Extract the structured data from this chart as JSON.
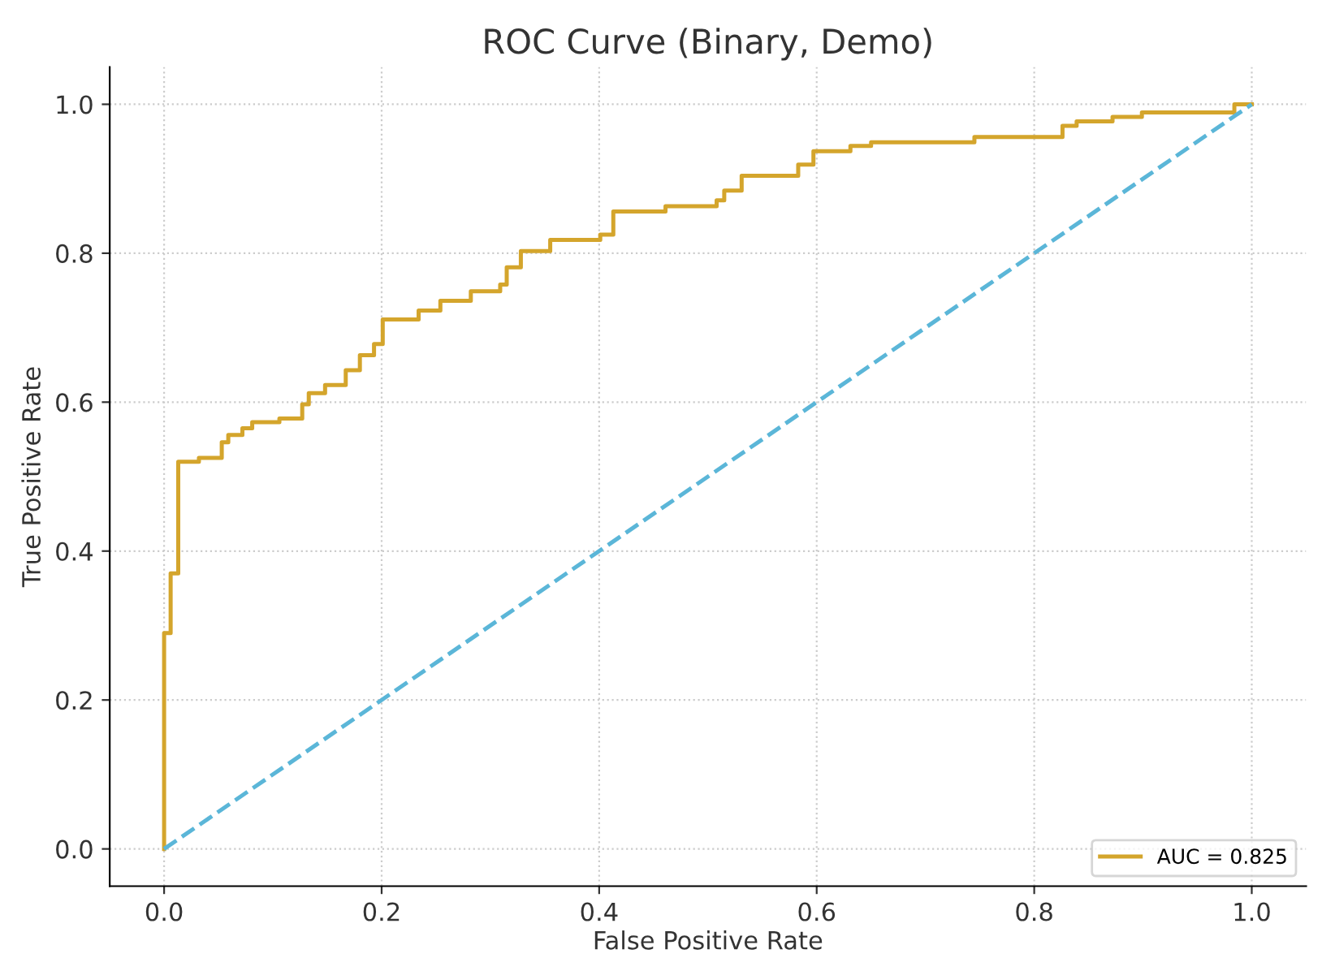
{
  "chart_data": {
    "type": "step",
    "title": "ROC Curve (Binary, Demo)",
    "xlabel": "False Positive Rate",
    "ylabel": "True Positive Rate",
    "series": [
      {
        "name": "AUC = 0.825",
        "color": "#d4a52c",
        "line_style": "solid",
        "x": [
          0,
          0,
          0.006,
          0.013,
          0.032,
          0.053,
          0.059,
          0.072,
          0.081,
          0.106,
          0.127,
          0.133,
          0.148,
          0.167,
          0.18,
          0.193,
          0.201,
          0.234,
          0.254,
          0.282,
          0.309,
          0.315,
          0.328,
          0.355,
          0.401,
          0.413,
          0.461,
          0.508,
          0.515,
          0.531,
          0.583,
          0.597,
          0.631,
          0.65,
          0.745,
          0.826,
          0.839,
          0.872,
          0.899,
          0.984,
          1.0
        ],
        "values": [
          0,
          0.29,
          0.37,
          0.52,
          0.525,
          0.546,
          0.556,
          0.565,
          0.573,
          0.578,
          0.597,
          0.612,
          0.623,
          0.643,
          0.663,
          0.678,
          0.711,
          0.723,
          0.736,
          0.749,
          0.758,
          0.781,
          0.803,
          0.818,
          0.825,
          0.856,
          0.863,
          0.871,
          0.884,
          0.904,
          0.919,
          0.937,
          0.944,
          0.949,
          0.956,
          0.971,
          0.977,
          0.983,
          0.989,
          1.0,
          1.0
        ]
      },
      {
        "color": "#5bb6d8",
        "type": "line",
        "line_style": "dashed",
        "x": [
          0,
          1
        ],
        "values": [
          0,
          1
        ]
      }
    ],
    "xlim": [
      -0.05,
      1.05
    ],
    "ylim": [
      -0.05,
      1.05
    ],
    "xticks": [
      {
        "value": 0,
        "label": "0.0"
      },
      0.2,
      0.4,
      0.6,
      0.8,
      {
        "value": 1,
        "label": "1.0"
      }
    ],
    "yticks": [
      {
        "value": 0,
        "label": "0.0"
      },
      0.2,
      0.4,
      0.6,
      0.8,
      {
        "value": 1,
        "label": "1.0"
      }
    ],
    "grid": true,
    "legend": "bottom right"
  }
}
